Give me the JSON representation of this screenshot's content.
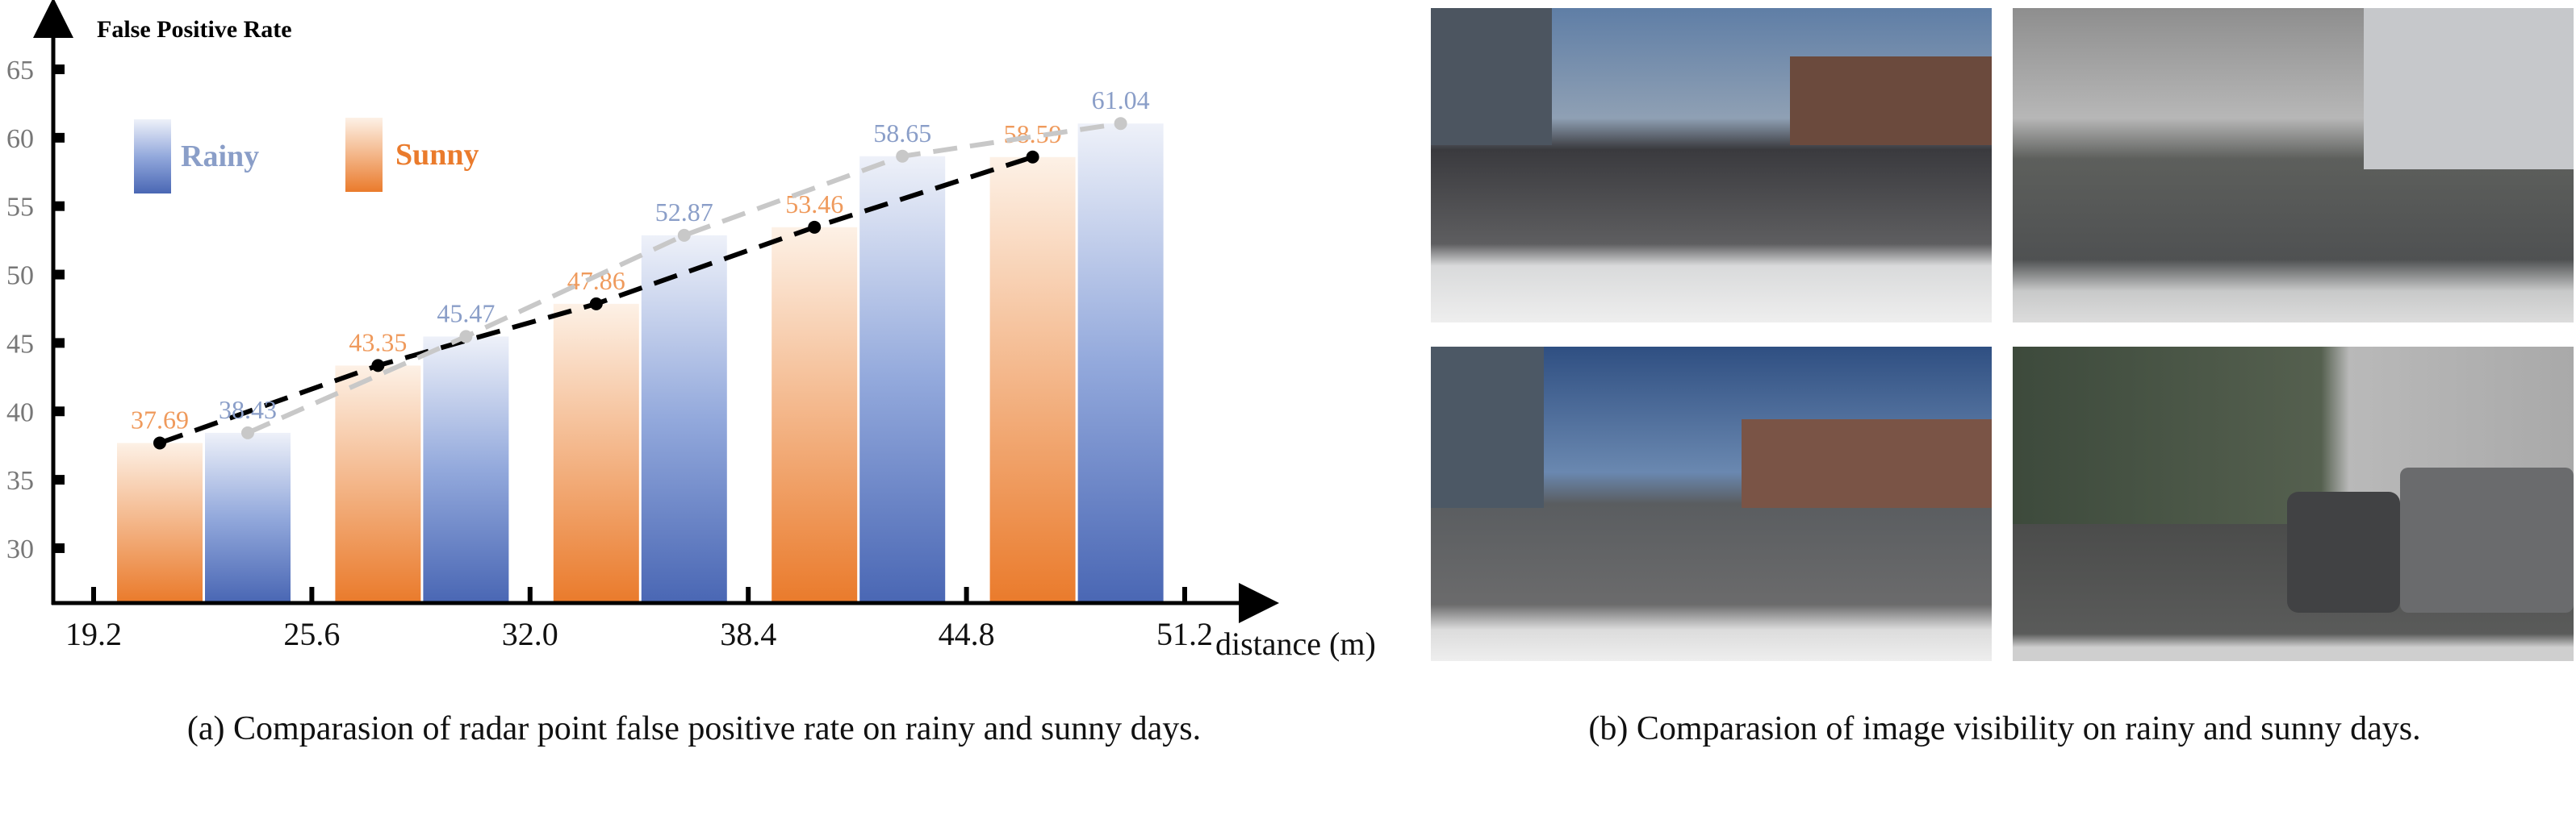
{
  "chart_data": {
    "type": "bar",
    "title": "",
    "ylabel": "False Positive Rate",
    "xlabel": "distance (m)",
    "ylim": [
      26,
      67
    ],
    "yticks": [
      30,
      35,
      40,
      45,
      50,
      55,
      60,
      65
    ],
    "xticks": [
      "19.2",
      "25.6",
      "32.0",
      "38.4",
      "44.8",
      "51.2"
    ],
    "categories": [
      "19.2-25.6",
      "25.6-32.0",
      "32.0-38.4",
      "38.4-44.8",
      "44.8-51.2"
    ],
    "series": [
      {
        "name": "Sunny",
        "values": [
          37.69,
          43.35,
          47.86,
          53.46,
          58.59
        ],
        "color": "#ea7b2c",
        "label_color": "#ef9a5c",
        "line_color": "#000000"
      },
      {
        "name": "Rainy",
        "values": [
          38.43,
          45.47,
          52.87,
          58.65,
          61.04
        ],
        "color": "#4a67b4",
        "label_color": "#8a9ec8",
        "line_color": "#c8c8c8"
      }
    ],
    "legend": "top-left",
    "grid": false
  },
  "captions": {
    "a": "(a) Comparasion of  radar point false positive rate on rainy and sunny days.",
    "b": "(b) Comparasion of  image visibility on rainy and sunny days."
  }
}
